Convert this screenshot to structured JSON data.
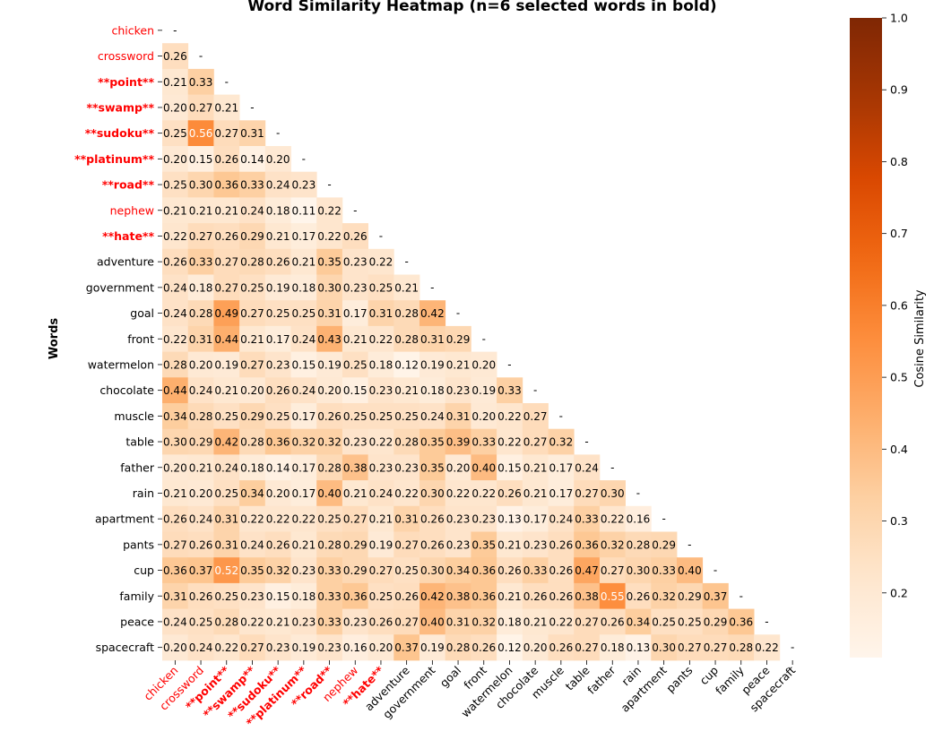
{
  "chart_data": {
    "type": "heatmap",
    "title": "Word Similarity Heatmap (n=6 selected words in bold)",
    "ylabel": "Words",
    "xlabel": "",
    "colorbar_label": "Cosine Similarity",
    "colorbar_ticks": [
      "1.0",
      "0.9",
      "0.8",
      "0.7",
      "0.6",
      "0.5",
      "0.4",
      "0.3",
      "0.2"
    ],
    "colorbar_range": [
      0.11,
      1.0
    ],
    "colormap": "Oranges",
    "mask": "upper-triangle",
    "highlight_color": "#ff0000",
    "words": [
      "chicken",
      "crossword",
      "**point**",
      "**swamp**",
      "**sudoku**",
      "**platinum**",
      "**road**",
      "nephew",
      "**hate**",
      "adventure",
      "government",
      "goal",
      "front",
      "watermelon",
      "chocolate",
      "muscle",
      "table",
      "father",
      "rain",
      "apartment",
      "pants",
      "cup",
      "family",
      "peace",
      "spacecraft"
    ],
    "highlighted": [
      "chicken",
      "crossword",
      "**point**",
      "**swamp**",
      "**sudoku**",
      "**platinum**",
      "**road**",
      "nephew",
      "**hate**"
    ],
    "bold": [
      "**point**",
      "**swamp**",
      "**sudoku**",
      "**platinum**",
      "**road**",
      "**hate**"
    ],
    "diagonal_label": "-",
    "rows": [
      [],
      [
        0.26
      ],
      [
        0.21,
        0.33
      ],
      [
        0.2,
        0.27,
        0.21
      ],
      [
        0.25,
        0.56,
        0.27,
        0.31
      ],
      [
        0.2,
        0.15,
        0.26,
        0.14,
        0.2
      ],
      [
        0.25,
        0.3,
        0.36,
        0.33,
        0.24,
        0.23
      ],
      [
        0.21,
        0.21,
        0.21,
        0.24,
        0.18,
        0.11,
        0.22
      ],
      [
        0.22,
        0.27,
        0.26,
        0.29,
        0.21,
        0.17,
        0.22,
        0.26
      ],
      [
        0.26,
        0.33,
        0.27,
        0.28,
        0.26,
        0.21,
        0.35,
        0.23,
        0.22
      ],
      [
        0.24,
        0.18,
        0.27,
        0.25,
        0.19,
        0.18,
        0.3,
        0.23,
        0.25,
        0.21
      ],
      [
        0.24,
        0.28,
        0.49,
        0.27,
        0.25,
        0.25,
        0.31,
        0.17,
        0.31,
        0.28,
        0.42
      ],
      [
        0.22,
        0.31,
        0.44,
        0.21,
        0.17,
        0.24,
        0.43,
        0.21,
        0.22,
        0.28,
        0.31,
        0.29
      ],
      [
        0.28,
        0.2,
        0.19,
        0.27,
        0.23,
        0.15,
        0.19,
        0.25,
        0.18,
        0.12,
        0.19,
        0.21,
        0.2
      ],
      [
        0.44,
        0.24,
        0.21,
        0.2,
        0.26,
        0.24,
        0.2,
        0.15,
        0.23,
        0.21,
        0.18,
        0.23,
        0.19,
        0.33
      ],
      [
        0.34,
        0.28,
        0.25,
        0.29,
        0.25,
        0.17,
        0.26,
        0.25,
        0.25,
        0.25,
        0.24,
        0.31,
        0.2,
        0.22,
        0.27
      ],
      [
        0.3,
        0.29,
        0.42,
        0.28,
        0.36,
        0.32,
        0.32,
        0.23,
        0.22,
        0.28,
        0.35,
        0.39,
        0.33,
        0.22,
        0.27,
        0.32
      ],
      [
        0.2,
        0.21,
        0.24,
        0.18,
        0.14,
        0.17,
        0.28,
        0.38,
        0.23,
        0.23,
        0.35,
        0.2,
        0.4,
        0.15,
        0.21,
        0.17,
        0.24
      ],
      [
        0.21,
        0.2,
        0.25,
        0.34,
        0.2,
        0.17,
        0.4,
        0.21,
        0.24,
        0.22,
        0.3,
        0.22,
        0.22,
        0.26,
        0.21,
        0.17,
        0.27,
        0.3
      ],
      [
        0.26,
        0.24,
        0.31,
        0.22,
        0.22,
        0.22,
        0.25,
        0.27,
        0.21,
        0.31,
        0.26,
        0.23,
        0.23,
        0.13,
        0.17,
        0.24,
        0.33,
        0.22,
        0.16
      ],
      [
        0.27,
        0.26,
        0.31,
        0.24,
        0.26,
        0.21,
        0.28,
        0.29,
        0.19,
        0.27,
        0.26,
        0.23,
        0.35,
        0.21,
        0.23,
        0.26,
        0.36,
        0.32,
        0.28,
        0.29
      ],
      [
        0.36,
        0.37,
        0.52,
        0.35,
        0.32,
        0.23,
        0.33,
        0.29,
        0.27,
        0.25,
        0.3,
        0.34,
        0.36,
        0.26,
        0.33,
        0.26,
        0.47,
        0.27,
        0.3,
        0.33,
        0.4
      ],
      [
        0.31,
        0.26,
        0.25,
        0.23,
        0.15,
        0.18,
        0.33,
        0.36,
        0.25,
        0.26,
        0.42,
        0.38,
        0.36,
        0.21,
        0.26,
        0.26,
        0.38,
        0.55,
        0.26,
        0.32,
        0.29,
        0.37
      ],
      [
        0.24,
        0.25,
        0.28,
        0.22,
        0.21,
        0.23,
        0.33,
        0.23,
        0.26,
        0.27,
        0.4,
        0.31,
        0.32,
        0.18,
        0.21,
        0.22,
        0.27,
        0.26,
        0.34,
        0.25,
        0.25,
        0.29,
        0.36
      ],
      [
        0.2,
        0.24,
        0.22,
        0.27,
        0.23,
        0.19,
        0.23,
        0.16,
        0.2,
        0.37,
        0.19,
        0.28,
        0.26,
        0.12,
        0.2,
        0.26,
        0.27,
        0.18,
        0.13,
        0.3,
        0.27,
        0.27,
        0.28,
        0.22
      ]
    ]
  }
}
